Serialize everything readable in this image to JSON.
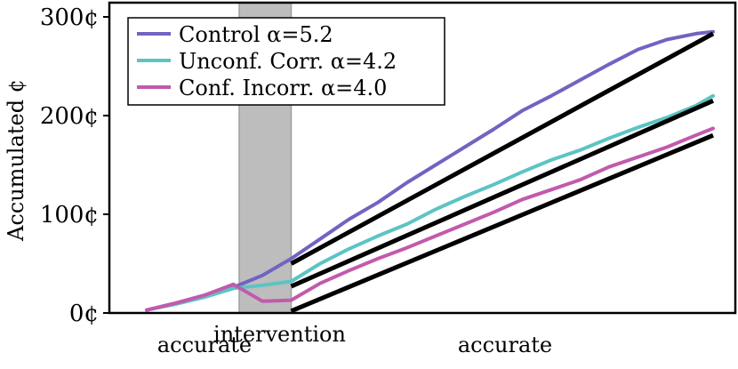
{
  "chart_data": {
    "type": "line",
    "ylabel": "Accumulated ¢",
    "xlabel": "",
    "ylim": [
      0,
      300
    ],
    "y_ticks": [
      {
        "value": 0,
        "label": "0¢"
      },
      {
        "value": 100,
        "label": "100¢"
      },
      {
        "value": 200,
        "label": "200¢"
      },
      {
        "value": 300,
        "label": "300¢"
      }
    ],
    "xlim": [
      0,
      100
    ],
    "x_region_labels": [
      {
        "label": "accurate",
        "x": 10
      },
      {
        "label": "intervention",
        "x": 23
      },
      {
        "label": "accurate",
        "x": 62
      }
    ],
    "shaded_region": [
      16,
      25
    ],
    "legend_position": "top-left",
    "grid": false,
    "series": [
      {
        "name": "Control α=5.2",
        "color": "#7163c2",
        "x": [
          0,
          5,
          10,
          15,
          20,
          25,
          30,
          35,
          40,
          45,
          50,
          55,
          60,
          65,
          70,
          75,
          80,
          85,
          90,
          95,
          98
        ],
        "y": [
          3,
          10,
          18,
          26,
          38,
          55,
          75,
          95,
          112,
          132,
          150,
          168,
          186,
          205,
          220,
          236,
          252,
          267,
          277,
          283,
          285
        ]
      },
      {
        "name": "Unconf. Corr. α=4.2",
        "color": "#5cc4c3",
        "x": [
          0,
          5,
          10,
          15,
          20,
          25,
          30,
          35,
          40,
          45,
          50,
          55,
          60,
          65,
          70,
          75,
          80,
          85,
          90,
          95,
          98
        ],
        "y": [
          3,
          9,
          16,
          25,
          28,
          32,
          50,
          65,
          78,
          90,
          105,
          118,
          130,
          143,
          155,
          165,
          177,
          188,
          198,
          210,
          220
        ]
      },
      {
        "name": "Conf. Incorr. α=4.0",
        "color": "#c15aac",
        "x": [
          0,
          5,
          10,
          15,
          20,
          25,
          30,
          35,
          40,
          45,
          50,
          55,
          60,
          65,
          70,
          75,
          80,
          85,
          90,
          95,
          98
        ],
        "y": [
          3,
          10,
          18,
          29,
          12,
          13,
          30,
          43,
          55,
          66,
          78,
          90,
          102,
          115,
          125,
          135,
          148,
          158,
          168,
          180,
          187
        ]
      }
    ],
    "fit_lines": [
      {
        "x": [
          25,
          98
        ],
        "y": [
          50,
          283
        ]
      },
      {
        "x": [
          25,
          98
        ],
        "y": [
          27,
          215
        ]
      },
      {
        "x": [
          25,
          98
        ],
        "y": [
          2,
          180
        ]
      }
    ]
  }
}
